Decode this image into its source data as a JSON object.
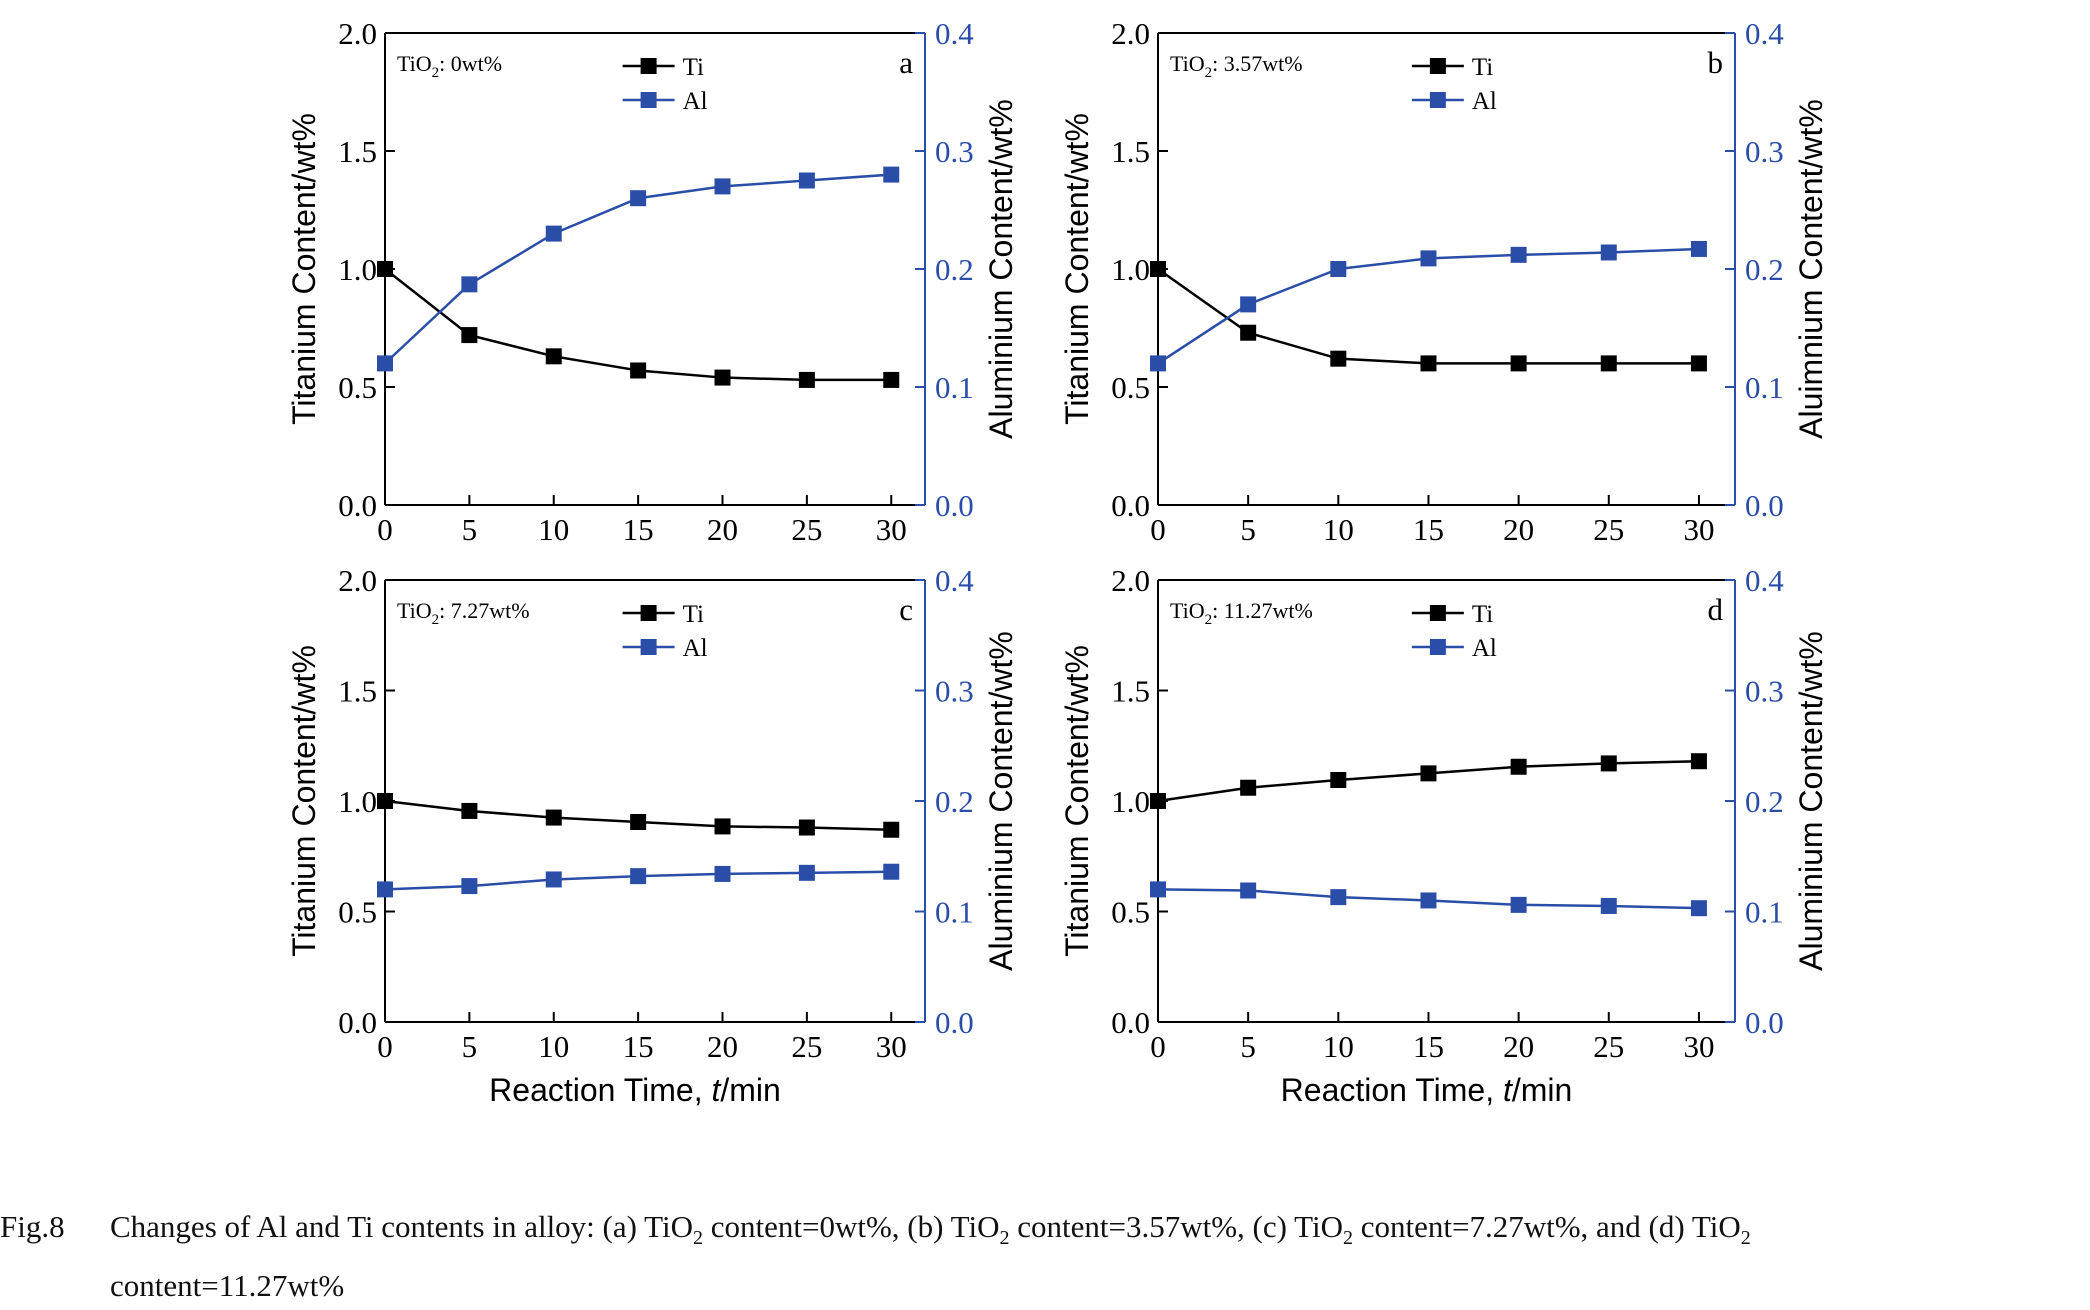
{
  "figure": {
    "caption_label": "Fig.8",
    "caption_text_1a": "Changes of Al and Ti contents in alloy: (a) TiO",
    "caption_text_1b": " content=0wt%, (b) TiO",
    "caption_text_1c": " content=3.57wt%, (c) TiO",
    "caption_text_1d": " content=7.27wt%, and (d) TiO",
    "caption_sub": "2",
    "caption_text_2": "content=11.27wt%"
  },
  "colors": {
    "ti": "#000000",
    "al": "#2a4ea8",
    "right_axis": "#2a4ea8"
  },
  "chart_data": [
    {
      "type": "line",
      "panel_letter": "a",
      "annotation_main": "TiO",
      "annotation_sub": "2",
      "annotation_rest": ": 0wt%",
      "x": [
        0,
        5,
        10,
        15,
        20,
        25,
        30
      ],
      "xlim": [
        0,
        32
      ],
      "xticks": [
        0,
        5,
        10,
        15,
        20,
        25,
        30
      ],
      "xlabel": "",
      "ylabel": "Titanium Content/wt%",
      "ylim": [
        0,
        2
      ],
      "yticks": [
        0.0,
        0.5,
        1.0,
        1.5,
        2.0
      ],
      "y2label": "Aluminium Content/wt%",
      "y2lim": [
        0,
        0.4
      ],
      "y2ticks": [
        0.0,
        0.1,
        0.2,
        0.3,
        0.4
      ],
      "legend_position": "top-center",
      "series": [
        {
          "name": "Ti",
          "axis": "left",
          "values": [
            1.0,
            0.72,
            0.63,
            0.57,
            0.54,
            0.53,
            0.53
          ]
        },
        {
          "name": "Al",
          "axis": "right",
          "values": [
            0.12,
            0.187,
            0.23,
            0.26,
            0.27,
            0.275,
            0.28
          ]
        }
      ]
    },
    {
      "type": "line",
      "panel_letter": "b",
      "annotation_main": "TiO",
      "annotation_sub": "2",
      "annotation_rest": ": 3.57wt%",
      "x": [
        0,
        5,
        10,
        15,
        20,
        25,
        30
      ],
      "xlim": [
        0,
        32
      ],
      "xticks": [
        0,
        5,
        10,
        15,
        20,
        25,
        30
      ],
      "xlabel": "",
      "ylabel": "Titanium Content/wt%",
      "ylim": [
        0,
        2
      ],
      "yticks": [
        0.0,
        0.5,
        1.0,
        1.5,
        2.0
      ],
      "y2label": "Aluimnium Content/wt%",
      "y2lim": [
        0,
        0.4
      ],
      "y2ticks": [
        0.0,
        0.1,
        0.2,
        0.3,
        0.4
      ],
      "legend_position": "top-center",
      "series": [
        {
          "name": "Ti",
          "axis": "left",
          "values": [
            1.0,
            0.73,
            0.62,
            0.6,
            0.6,
            0.6,
            0.6
          ]
        },
        {
          "name": "Al",
          "axis": "right",
          "values": [
            0.12,
            0.17,
            0.2,
            0.209,
            0.212,
            0.214,
            0.217
          ]
        }
      ]
    },
    {
      "type": "line",
      "panel_letter": "c",
      "annotation_main": "TiO",
      "annotation_sub": "2",
      "annotation_rest": ": 7.27wt%",
      "x": [
        0,
        5,
        10,
        15,
        20,
        25,
        30
      ],
      "xlim": [
        0,
        32
      ],
      "xticks": [
        0,
        5,
        10,
        15,
        20,
        25,
        30
      ],
      "xlabel": "Reaction Time, ",
      "xlabel_italic": "t",
      "xlabel_unit": "/min",
      "ylabel": "Titanium Content/wt%",
      "ylim": [
        0,
        2
      ],
      "yticks": [
        0.0,
        0.5,
        1.0,
        1.5,
        2.0
      ],
      "y2label": "Aluminium Content/wt%",
      "y2lim": [
        0,
        0.4
      ],
      "y2ticks": [
        0.0,
        0.1,
        0.2,
        0.3,
        0.4
      ],
      "legend_position": "top-center",
      "series": [
        {
          "name": "Ti",
          "axis": "left",
          "values": [
            1.0,
            0.955,
            0.925,
            0.905,
            0.885,
            0.88,
            0.87
          ]
        },
        {
          "name": "Al",
          "axis": "right",
          "values": [
            0.12,
            0.123,
            0.129,
            0.132,
            0.134,
            0.135,
            0.136
          ]
        }
      ]
    },
    {
      "type": "line",
      "panel_letter": "d",
      "annotation_main": "TiO",
      "annotation_sub": "2",
      "annotation_rest": ": 11.27wt%",
      "x": [
        0,
        5,
        10,
        15,
        20,
        25,
        30
      ],
      "xlim": [
        0,
        32
      ],
      "xticks": [
        0,
        5,
        10,
        15,
        20,
        25,
        30
      ],
      "xlabel": "Reaction Time, ",
      "xlabel_italic": "t",
      "xlabel_unit": "/min",
      "ylabel": "Titanium Content/wt%",
      "ylim": [
        0,
        2
      ],
      "yticks": [
        0.0,
        0.5,
        1.0,
        1.5,
        2.0
      ],
      "y2label": "Aluminium Content/wt%",
      "y2lim": [
        0,
        0.4
      ],
      "y2ticks": [
        0.0,
        0.1,
        0.2,
        0.3,
        0.4
      ],
      "legend_position": "top-center",
      "series": [
        {
          "name": "Ti",
          "axis": "left",
          "values": [
            1.0,
            1.06,
            1.095,
            1.125,
            1.155,
            1.17,
            1.18
          ]
        },
        {
          "name": "Al",
          "axis": "right",
          "values": [
            0.12,
            0.119,
            0.113,
            0.11,
            0.106,
            0.105,
            0.103
          ]
        }
      ]
    }
  ]
}
